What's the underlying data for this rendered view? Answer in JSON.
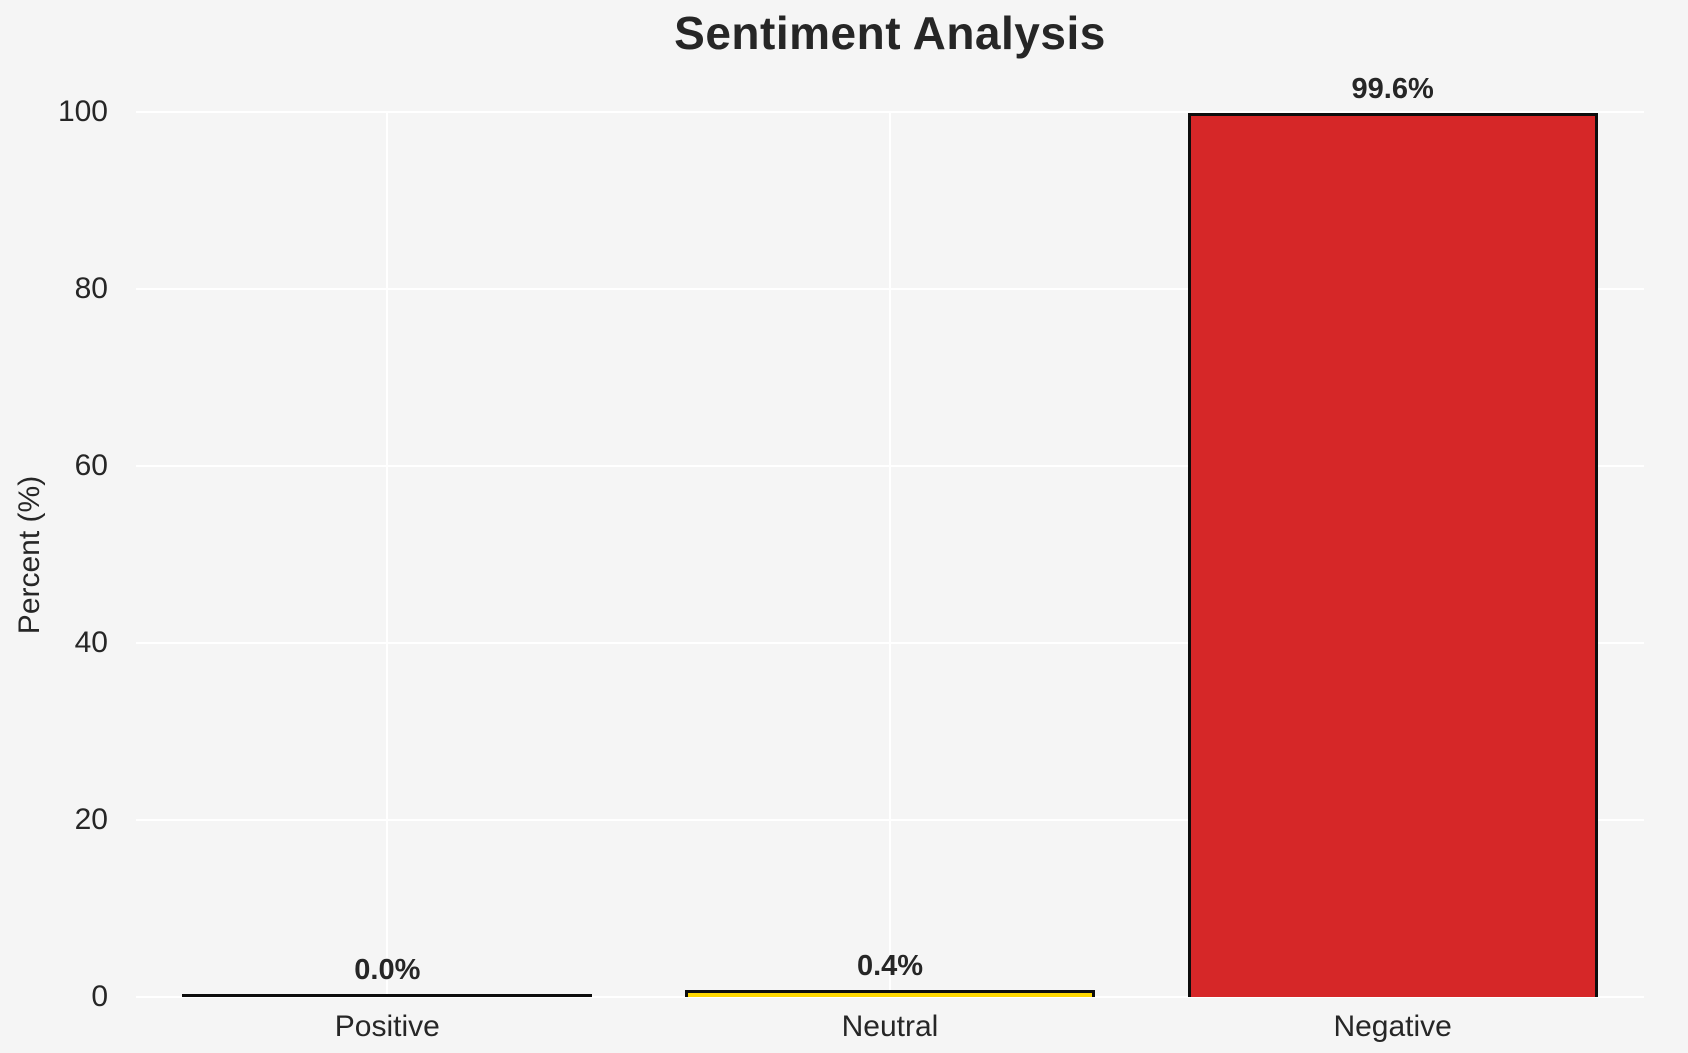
{
  "chart_data": {
    "type": "bar",
    "title": "Sentiment Analysis",
    "xlabel": "",
    "ylabel": "Percent (%)",
    "categories": [
      "Positive",
      "Neutral",
      "Negative"
    ],
    "values": [
      0.0,
      0.4,
      99.6
    ],
    "bar_labels": [
      "0.0%",
      "0.4%",
      "99.6%"
    ],
    "bar_colors": [
      "#2ca02c",
      "#ffd700",
      "#d62728"
    ],
    "bar_edge_color": "#0d0d0d",
    "ylim": [
      0,
      100
    ],
    "yticks": [
      0,
      20,
      40,
      60,
      80,
      100
    ],
    "grid": "on",
    "grid_axes": "both",
    "legend": "none",
    "colors": {
      "figure_background": "#f5f5f5",
      "grid_color": "#ffffff",
      "text_color": "#262626"
    }
  }
}
